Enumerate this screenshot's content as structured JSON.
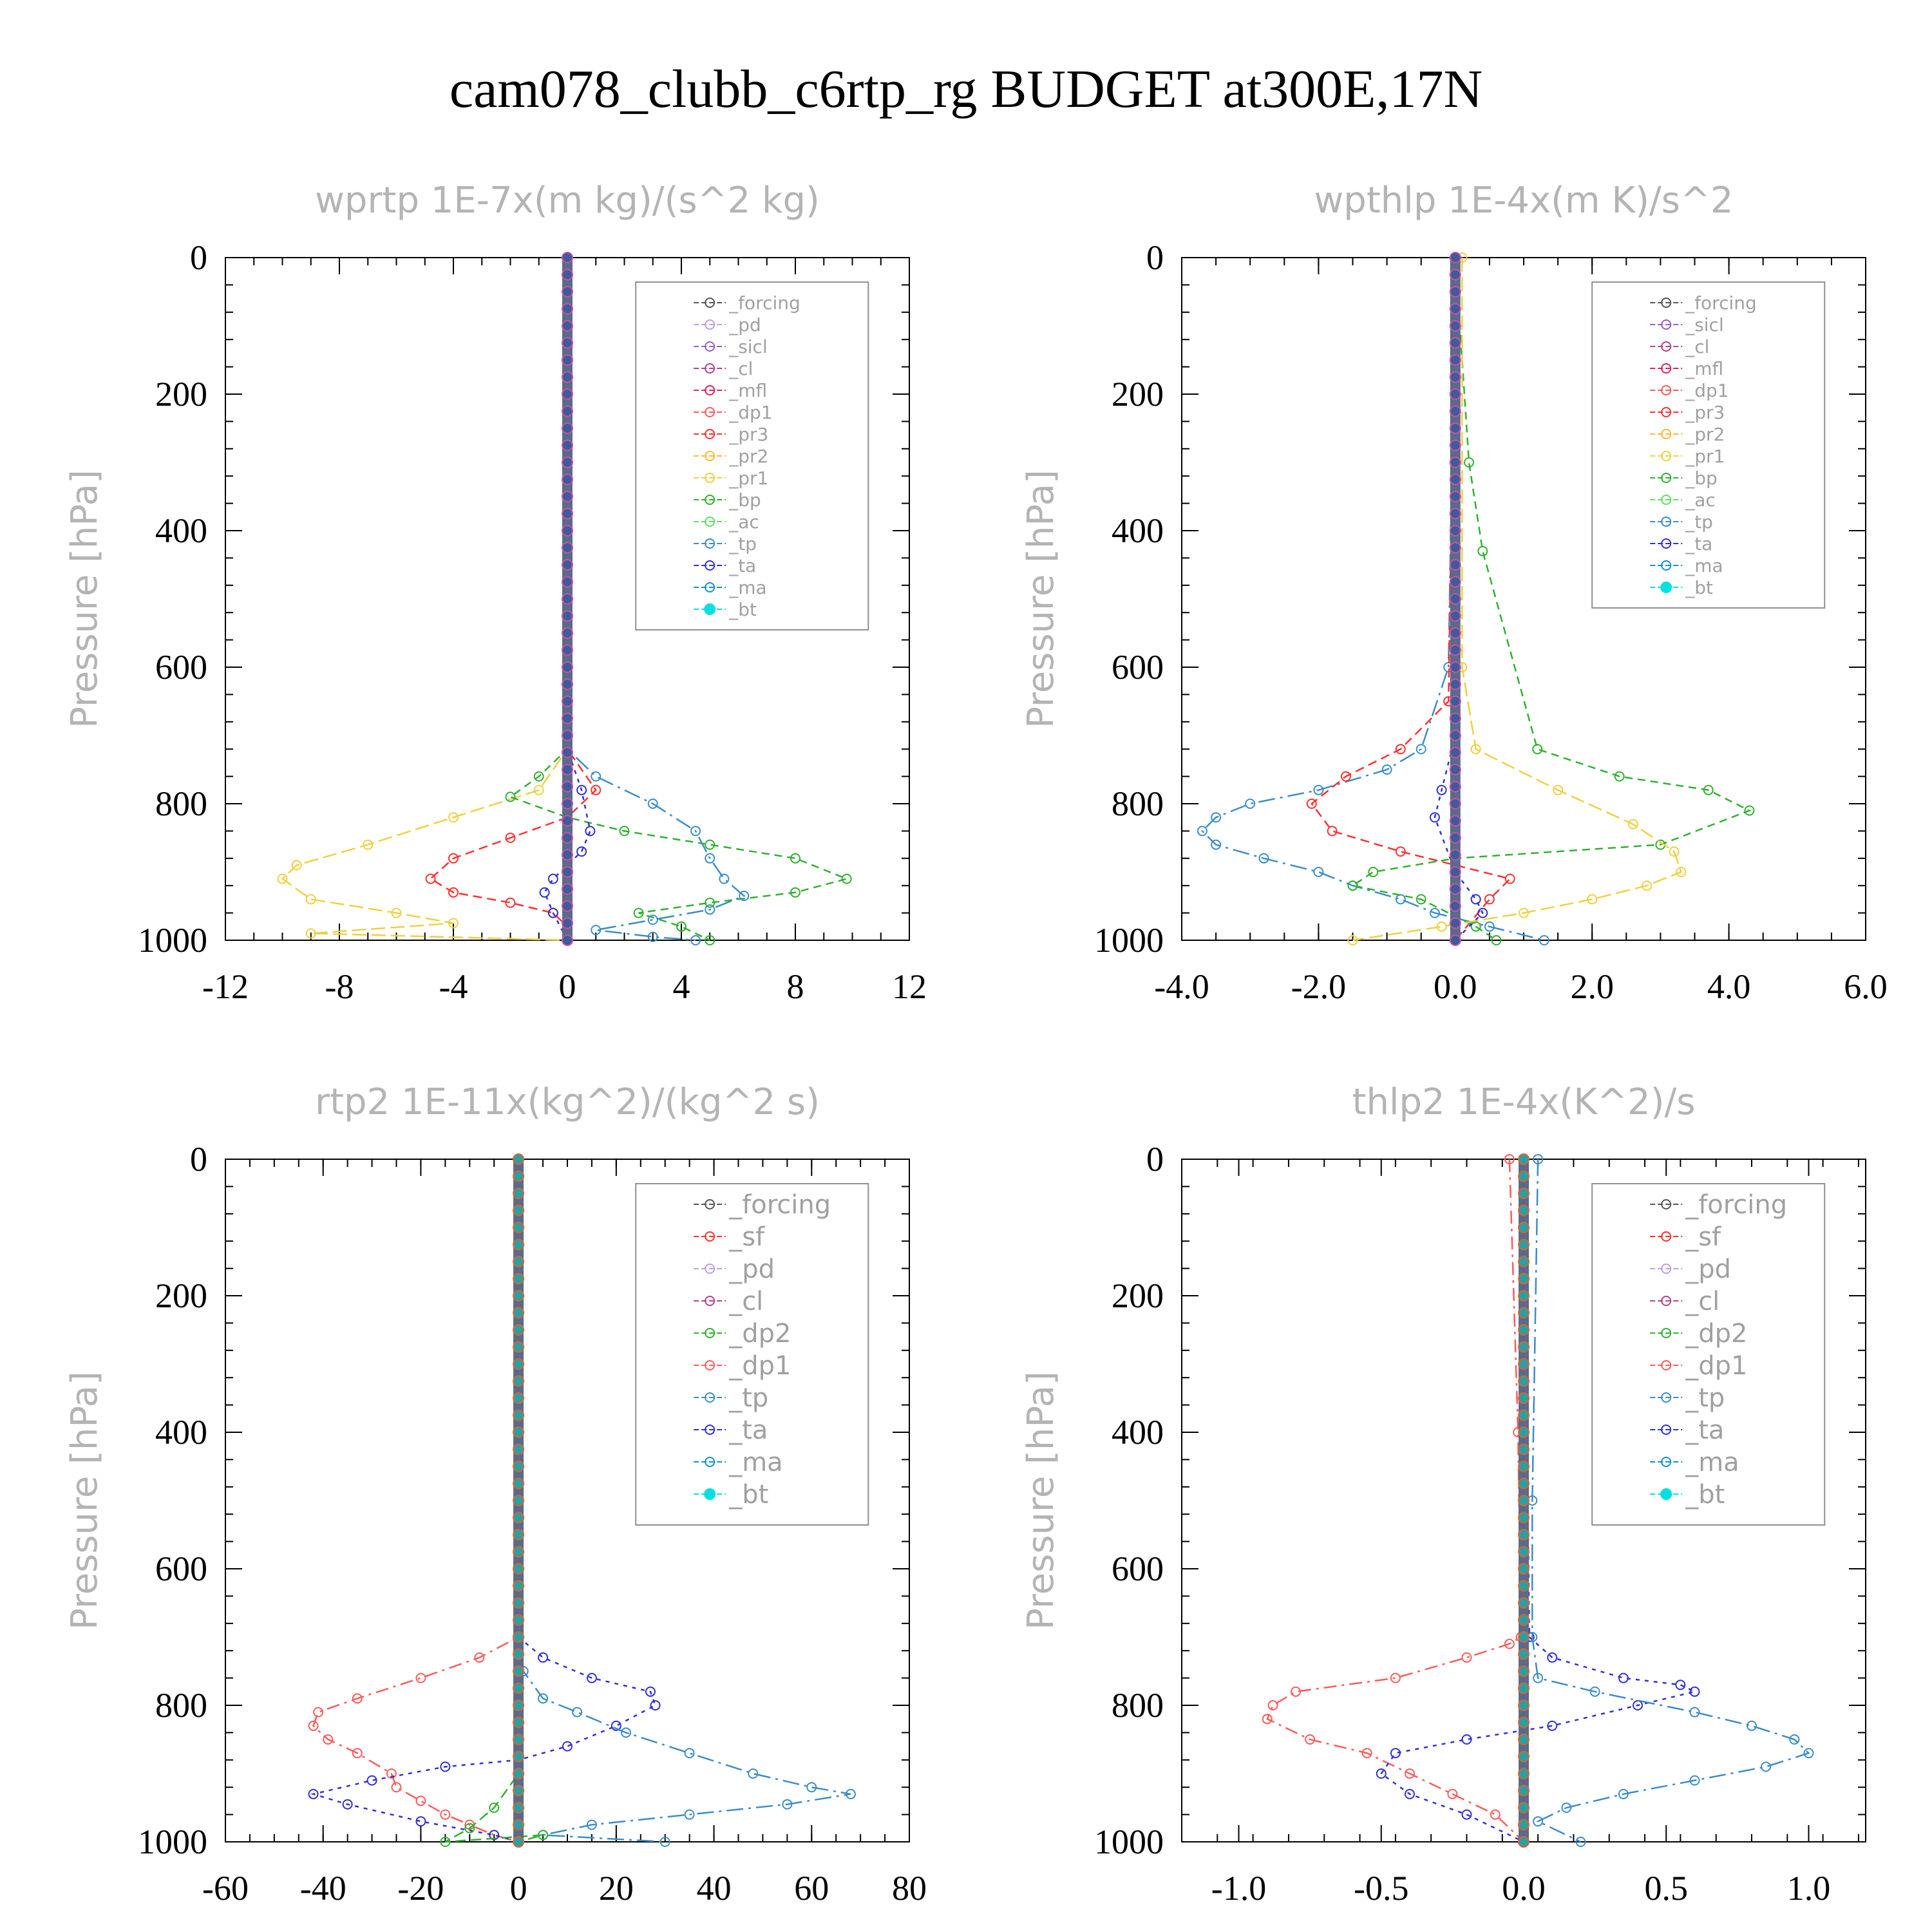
{
  "page": {
    "title": "cam078_clubb_c6rtp_rg  BUDGET at300E,17N"
  },
  "colors": {
    "_forcing": "#555555",
    "_pd": "#c89be6",
    "_sicl": "#9b5fc0",
    "_cl": "#b4408c",
    "_mfl": "#e0205a",
    "_dp1": "#ff5a5a",
    "_pr3": "#ff3030",
    "_pr2": "#ffb830",
    "_pr1": "#f0d040",
    "_bp": "#30b030",
    "_ac": "#60e060",
    "_tp": "#3c8cc8",
    "_ta": "#3030d0",
    "_ma": "#1090d0",
    "_bt": "#00e0e0",
    "_sf": "#ff3030",
    "_dp2": "#30b030"
  },
  "chart_data": [
    {
      "type": "line",
      "title": "wprtp  1E-7x(m kg)/(s^2 kg)",
      "ylabel": "Pressure [hPa]",
      "xlim": [
        -12,
        12
      ],
      "ylim": [
        1000,
        0
      ],
      "xticks": [
        "-12",
        "-8",
        "-4",
        "0",
        "4",
        "8",
        "12"
      ],
      "xtick_values": [
        -12,
        -8,
        -4,
        0,
        4,
        8,
        12
      ],
      "yticks": [
        "0",
        "200",
        "400",
        "600",
        "800",
        "1000"
      ],
      "legend": [
        "_forcing",
        "_pd",
        "_sicl",
        "_cl",
        "_mfl",
        "_dp1",
        "_pr3",
        "_pr2",
        "_pr1",
        "_bp",
        "_ac",
        "_tp",
        "_ta",
        "_ma",
        "_bt"
      ],
      "series": [
        {
          "name": "_pr1",
          "x": [
            0,
            0,
            -1,
            -4,
            -7,
            -9.5,
            -10,
            -9,
            -6,
            -4,
            -9,
            0
          ],
          "y": [
            0,
            720,
            780,
            820,
            860,
            890,
            910,
            940,
            960,
            975,
            990,
            1000
          ]
        },
        {
          "name": "_pr3",
          "x": [
            0,
            0,
            1,
            0,
            -2,
            -4,
            -4.8,
            -4,
            -2,
            -0.5,
            0,
            0
          ],
          "y": [
            0,
            720,
            780,
            820,
            850,
            880,
            910,
            930,
            945,
            960,
            980,
            1000
          ]
        },
        {
          "name": "_bp",
          "x": [
            0,
            0,
            -1,
            -2,
            0,
            2,
            5,
            8,
            9.8,
            8,
            5,
            2.5,
            4,
            5
          ],
          "y": [
            0,
            720,
            760,
            790,
            820,
            840,
            860,
            880,
            910,
            930,
            945,
            960,
            980,
            1000
          ]
        },
        {
          "name": "_tp",
          "x": [
            0,
            0,
            1,
            3,
            4.5,
            5,
            5.5,
            6.2,
            5,
            3,
            1,
            3,
            4.5
          ],
          "y": [
            0,
            720,
            760,
            800,
            840,
            880,
            910,
            935,
            955,
            970,
            985,
            995,
            1000
          ]
        },
        {
          "name": "_ta",
          "x": [
            0,
            0,
            0.5,
            0.8,
            0.5,
            0,
            -0.5,
            -0.8,
            -0.5,
            0
          ],
          "y": [
            0,
            720,
            780,
            840,
            870,
            890,
            910,
            930,
            960,
            1000
          ]
        },
        {
          "name": "_bt",
          "x": [
            0,
            0
          ],
          "y": [
            0,
            1000
          ]
        }
      ]
    },
    {
      "type": "line",
      "title": "wpthlp  1E-4x(m K)/s^2",
      "ylabel": "Pressure [hPa]",
      "xlim": [
        -4,
        6
      ],
      "ylim": [
        1000,
        0
      ],
      "xticks": [
        "-4.0",
        "-2.0",
        "0.0",
        "2.0",
        "4.0",
        "6.0"
      ],
      "xtick_values": [
        -4,
        -2,
        0,
        2,
        4,
        6
      ],
      "yticks": [
        "0",
        "200",
        "400",
        "600",
        "800",
        "1000"
      ],
      "legend": [
        "_forcing",
        "_sicl",
        "_cl",
        "_mfl",
        "_dp1",
        "_pr3",
        "_pr2",
        "_pr1",
        "_bp",
        "_ac",
        "_tp",
        "_ta",
        "_ma",
        "_bt"
      ],
      "series": [
        {
          "name": "_tp",
          "x": [
            0,
            -0.1,
            -0.5,
            -1.0,
            -2.0,
            -3.0,
            -3.5,
            -3.7,
            -3.5,
            -2.8,
            -2.0,
            -1.5,
            -0.8,
            -0.3,
            0.5,
            1.3
          ],
          "y": [
            0,
            600,
            720,
            750,
            780,
            800,
            820,
            840,
            860,
            880,
            900,
            920,
            940,
            960,
            980,
            1000
          ]
        },
        {
          "name": "_pr3",
          "x": [
            0,
            -0.1,
            -0.8,
            -1.6,
            -2.1,
            -1.8,
            -0.8,
            0,
            0.8,
            0.5,
            0
          ],
          "y": [
            0,
            650,
            720,
            760,
            800,
            840,
            870,
            890,
            910,
            940,
            1000
          ]
        },
        {
          "name": "_bp",
          "x": [
            0,
            0.2,
            0.4,
            1.2,
            2.4,
            3.7,
            4.3,
            3,
            0,
            -1.2,
            -1.5,
            -0.5,
            0.3,
            0.6
          ],
          "y": [
            0,
            300,
            430,
            720,
            760,
            780,
            810,
            860,
            880,
            900,
            920,
            940,
            980,
            1000
          ]
        },
        {
          "name": "_pr1",
          "x": [
            0.1,
            0.1,
            0.3,
            1.5,
            2.6,
            3.2,
            3.3,
            2.8,
            2.0,
            1.0,
            -0.2,
            -1.5
          ],
          "y": [
            0,
            600,
            720,
            780,
            830,
            870,
            900,
            920,
            940,
            960,
            980,
            1000
          ]
        },
        {
          "name": "_ta",
          "x": [
            0,
            0,
            -0.2,
            -0.3,
            0,
            0.3,
            0.4,
            0
          ],
          "y": [
            0,
            700,
            780,
            820,
            900,
            940,
            960,
            1000
          ]
        },
        {
          "name": "_bt",
          "x": [
            0,
            0
          ],
          "y": [
            0,
            1000
          ]
        }
      ]
    },
    {
      "type": "line",
      "title": "rtp2  1E-11x(kg^2)/(kg^2 s)",
      "ylabel": "Pressure [hPa]",
      "xlim": [
        -60,
        80
      ],
      "ylim": [
        1000,
        0
      ],
      "xticks": [
        "-60",
        "-40",
        "-20",
        "0",
        "20",
        "40",
        "60",
        "80"
      ],
      "xtick_values": [
        -60,
        -40,
        -20,
        0,
        20,
        40,
        60,
        80
      ],
      "yticks": [
        "0",
        "200",
        "400",
        "600",
        "800",
        "1000"
      ],
      "legend": [
        "_forcing",
        "_sf",
        "_pd",
        "_cl",
        "_dp2",
        "_dp1",
        "_tp",
        "_ta",
        "_ma",
        "_bt"
      ],
      "series": [
        {
          "name": "_dp1",
          "x": [
            0,
            0,
            -8,
            -20,
            -33,
            -41,
            -42,
            -39,
            -33,
            -26,
            -25,
            -20,
            -15,
            -10,
            -5,
            0
          ],
          "y": [
            0,
            700,
            730,
            760,
            790,
            810,
            830,
            850,
            870,
            900,
            920,
            940,
            960,
            975,
            990,
            1000
          ]
        },
        {
          "name": "_ta",
          "x": [
            0,
            0,
            5,
            15,
            27,
            28,
            20,
            10,
            0,
            -15,
            -30,
            -42,
            -35,
            -20,
            -5,
            0
          ],
          "y": [
            0,
            700,
            730,
            760,
            780,
            800,
            830,
            860,
            880,
            890,
            910,
            930,
            945,
            970,
            990,
            1000
          ]
        },
        {
          "name": "_tp",
          "x": [
            0,
            0,
            1,
            5,
            12,
            22,
            35,
            48,
            60,
            68,
            55,
            35,
            15,
            5,
            30
          ],
          "y": [
            0,
            700,
            750,
            790,
            810,
            840,
            870,
            900,
            920,
            930,
            945,
            960,
            975,
            990,
            1000
          ]
        },
        {
          "name": "_dp2",
          "x": [
            0,
            0,
            -5,
            -10,
            -15,
            5,
            0
          ],
          "y": [
            0,
            900,
            950,
            980,
            1000,
            990,
            1000
          ]
        },
        {
          "name": "_bt",
          "x": [
            0,
            0
          ],
          "y": [
            0,
            1000
          ]
        }
      ]
    },
    {
      "type": "line",
      "title": "thlp2  1E-4x(K^2)/s",
      "ylabel": "Pressure [hPa]",
      "xlim": [
        -1.2,
        1.2
      ],
      "ylim": [
        1000,
        0
      ],
      "xticks": [
        "-1.0",
        "-0.5",
        "0.0",
        "0.5",
        "1.0"
      ],
      "xtick_values": [
        -1,
        -0.5,
        0,
        0.5,
        1
      ],
      "yticks": [
        "0",
        "200",
        "400",
        "600",
        "800",
        "1000"
      ],
      "legend": [
        "_forcing",
        "_sf",
        "_pd",
        "_cl",
        "_dp2",
        "_dp1",
        "_tp",
        "_ta",
        "_ma",
        "_bt"
      ],
      "series": [
        {
          "name": "_dp1",
          "x": [
            -0.05,
            -0.02,
            -0.01,
            -0.05,
            -0.2,
            -0.45,
            -0.8,
            -0.88,
            -0.9,
            -0.75,
            -0.55,
            -0.4,
            -0.25,
            -0.1,
            0
          ],
          "y": [
            0,
            400,
            700,
            710,
            730,
            760,
            780,
            800,
            820,
            850,
            870,
            900,
            930,
            960,
            1000
          ]
        },
        {
          "name": "_ta",
          "x": [
            0,
            0.02,
            0.1,
            0.35,
            0.55,
            0.6,
            0.4,
            0.1,
            -0.2,
            -0.45,
            -0.5,
            -0.4,
            -0.2,
            0
          ],
          "y": [
            0,
            700,
            730,
            760,
            770,
            780,
            800,
            830,
            850,
            870,
            900,
            930,
            960,
            1000
          ]
        },
        {
          "name": "_tp",
          "x": [
            0.05,
            0.03,
            0.03,
            0.05,
            0.25,
            0.6,
            0.8,
            0.95,
            1.0,
            0.85,
            0.6,
            0.35,
            0.15,
            0.05,
            0.2
          ],
          "y": [
            0,
            500,
            700,
            760,
            780,
            810,
            830,
            850,
            870,
            890,
            910,
            930,
            950,
            970,
            1000
          ]
        },
        {
          "name": "_bt",
          "x": [
            0,
            0
          ],
          "y": [
            0,
            1000
          ]
        }
      ]
    }
  ]
}
